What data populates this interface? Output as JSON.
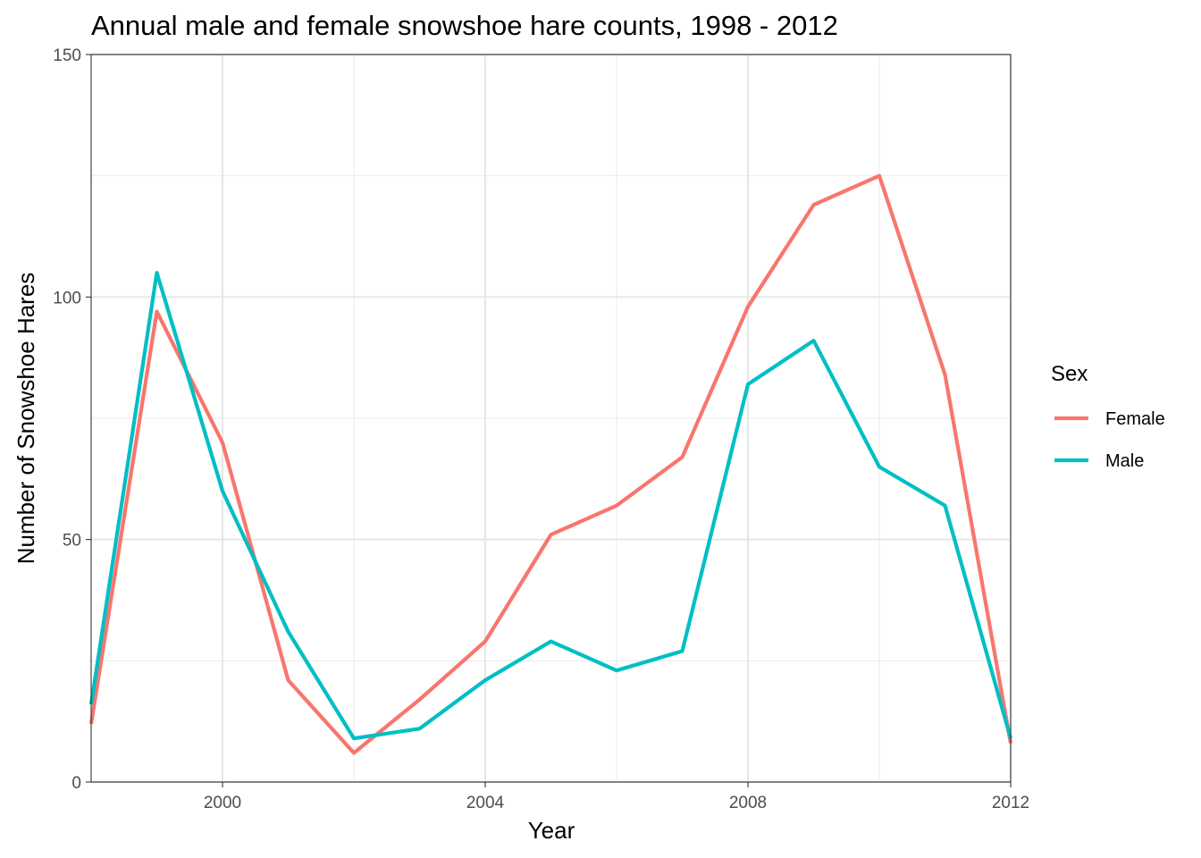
{
  "chart_data": {
    "type": "line",
    "title": "Annual male and female snowshoe hare counts, 1998 - 2012",
    "xlabel": "Year",
    "ylabel": "Number of Snowshoe Hares",
    "xlim": [
      1998,
      2012
    ],
    "ylim": [
      0,
      150
    ],
    "x_ticks": [
      2000,
      2004,
      2008,
      2012
    ],
    "y_ticks": [
      0,
      50,
      100,
      150
    ],
    "grid": true,
    "legend": {
      "title": "Sex",
      "position": "right"
    },
    "x": [
      1998,
      1999,
      2000,
      2001,
      2002,
      2003,
      2004,
      2005,
      2006,
      2007,
      2008,
      2009,
      2010,
      2011,
      2012
    ],
    "series": [
      {
        "name": "Female",
        "color": "#F8766D",
        "values": [
          12,
          97,
          70,
          21,
          6,
          17,
          29,
          51,
          57,
          67,
          98,
          119,
          125,
          84,
          8
        ]
      },
      {
        "name": "Male",
        "color": "#00BFC4",
        "values": [
          16,
          105,
          60,
          31,
          9,
          11,
          21,
          29,
          23,
          27,
          82,
          91,
          65,
          57,
          9
        ]
      }
    ]
  }
}
